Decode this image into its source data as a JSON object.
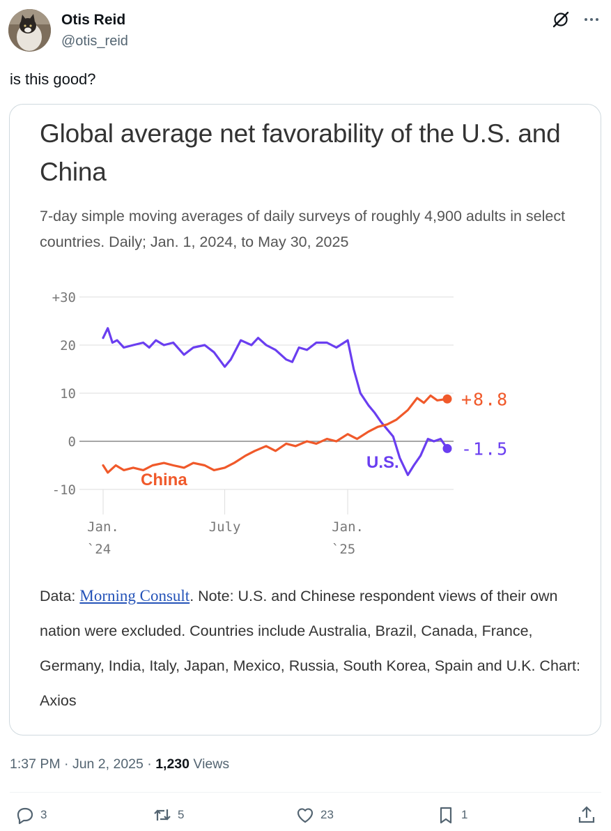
{
  "author": {
    "name": "Otis Reid",
    "handle": "@otis_reid"
  },
  "tweet": {
    "text": "is this good?"
  },
  "chart": {
    "title": "Global average net favorability of the U.S. and China",
    "subtitle": "7-day simple moving averages of daily surveys of roughly 4,900 adults in select countries. Daily; Jan. 1, 2024, to May 30, 2025",
    "note_prefix": "Data: ",
    "source_link": "Morning Consult",
    "note_suffix": ". Note: U.S. and Chinese respondent views of their own nation were excluded. Countries include Australia, Brazil, Canada, France, Germany, India, Italy, Japan, Mexico, Russia, South Korea, Spain and U.K. Chart: Axios"
  },
  "chart_data": {
    "type": "line",
    "title": "Global average net favorability of the U.S. and China",
    "subtitle": "7-day simple moving averages of daily surveys of roughly 4,900 adults in select countries. Daily; Jan. 1, 2024, to May 30, 2025",
    "ylim": [
      -10,
      30
    ],
    "y_ticks": [
      "+30",
      "20",
      "10",
      "0",
      "-10"
    ],
    "x_ticks": [
      [
        "Jan.",
        "`24"
      ],
      [
        "July",
        ""
      ],
      [
        "Jan.",
        "`25"
      ]
    ],
    "grid": true,
    "series": [
      {
        "name": "U.S.",
        "color": "#6a3ef0",
        "end_label": "-1.5",
        "points": [
          [
            "2024-01-01",
            21.5
          ],
          [
            "2024-01-08",
            23.5
          ],
          [
            "2024-01-15",
            20.5
          ],
          [
            "2024-01-22",
            21.0
          ],
          [
            "2024-02-01",
            19.5
          ],
          [
            "2024-02-15",
            20.0
          ],
          [
            "2024-03-01",
            20.5
          ],
          [
            "2024-03-10",
            19.5
          ],
          [
            "2024-03-20",
            21.0
          ],
          [
            "2024-04-01",
            20.0
          ],
          [
            "2024-04-15",
            20.5
          ],
          [
            "2024-05-01",
            18.0
          ],
          [
            "2024-05-15",
            19.5
          ],
          [
            "2024-06-01",
            20.0
          ],
          [
            "2024-06-15",
            18.5
          ],
          [
            "2024-07-01",
            15.5
          ],
          [
            "2024-07-10",
            17.0
          ],
          [
            "2024-07-25",
            21.0
          ],
          [
            "2024-08-10",
            20.0
          ],
          [
            "2024-08-20",
            21.5
          ],
          [
            "2024-09-01",
            20.0
          ],
          [
            "2024-09-15",
            19.0
          ],
          [
            "2024-10-01",
            17.0
          ],
          [
            "2024-10-10",
            16.5
          ],
          [
            "2024-10-20",
            19.5
          ],
          [
            "2024-11-01",
            19.0
          ],
          [
            "2024-11-15",
            20.5
          ],
          [
            "2024-12-01",
            20.5
          ],
          [
            "2024-12-15",
            19.5
          ],
          [
            "2025-01-01",
            21.0
          ],
          [
            "2025-01-10",
            15.0
          ],
          [
            "2025-01-20",
            10.0
          ],
          [
            "2025-02-01",
            7.5
          ],
          [
            "2025-02-10",
            6.0
          ],
          [
            "2025-02-20",
            4.0
          ],
          [
            "2025-03-01",
            2.5
          ],
          [
            "2025-03-10",
            1.0
          ],
          [
            "2025-03-20",
            -3.5
          ],
          [
            "2025-04-01",
            -7.0
          ],
          [
            "2025-04-10",
            -5.0
          ],
          [
            "2025-04-20",
            -3.0
          ],
          [
            "2025-05-01",
            0.5
          ],
          [
            "2025-05-10",
            0.0
          ],
          [
            "2025-05-20",
            0.5
          ],
          [
            "2025-05-30",
            -1.5
          ]
        ]
      },
      {
        "name": "China",
        "color": "#f0592a",
        "end_label": "+8.8",
        "points": [
          [
            "2024-01-01",
            -5.0
          ],
          [
            "2024-01-08",
            -6.5
          ],
          [
            "2024-01-20",
            -5.0
          ],
          [
            "2024-02-01",
            -6.0
          ],
          [
            "2024-02-15",
            -5.5
          ],
          [
            "2024-03-01",
            -6.0
          ],
          [
            "2024-03-15",
            -5.0
          ],
          [
            "2024-04-01",
            -4.5
          ],
          [
            "2024-04-15",
            -5.0
          ],
          [
            "2024-05-01",
            -5.5
          ],
          [
            "2024-05-15",
            -4.5
          ],
          [
            "2024-06-01",
            -5.0
          ],
          [
            "2024-06-15",
            -6.0
          ],
          [
            "2024-07-01",
            -5.5
          ],
          [
            "2024-07-15",
            -4.5
          ],
          [
            "2024-08-01",
            -3.0
          ],
          [
            "2024-08-15",
            -2.0
          ],
          [
            "2024-09-01",
            -1.0
          ],
          [
            "2024-09-15",
            -2.0
          ],
          [
            "2024-10-01",
            -0.5
          ],
          [
            "2024-10-15",
            -1.0
          ],
          [
            "2024-11-01",
            0.0
          ],
          [
            "2024-11-15",
            -0.5
          ],
          [
            "2024-12-01",
            0.5
          ],
          [
            "2024-12-15",
            0.0
          ],
          [
            "2025-01-01",
            1.5
          ],
          [
            "2025-01-15",
            0.5
          ],
          [
            "2025-02-01",
            2.0
          ],
          [
            "2025-02-15",
            3.0
          ],
          [
            "2025-03-01",
            3.5
          ],
          [
            "2025-03-15",
            4.5
          ],
          [
            "2025-04-01",
            6.5
          ],
          [
            "2025-04-15",
            9.0
          ],
          [
            "2025-04-25",
            8.0
          ],
          [
            "2025-05-05",
            9.5
          ],
          [
            "2025-05-15",
            8.5
          ],
          [
            "2025-05-30",
            8.8
          ]
        ]
      }
    ]
  },
  "meta": {
    "time": "1:37 PM · Jun 2, 2025 · ",
    "views_count": "1,230",
    "views_label": " Views"
  },
  "actions": {
    "replies": "3",
    "reposts": "5",
    "likes": "23",
    "bookmarks": "1"
  }
}
